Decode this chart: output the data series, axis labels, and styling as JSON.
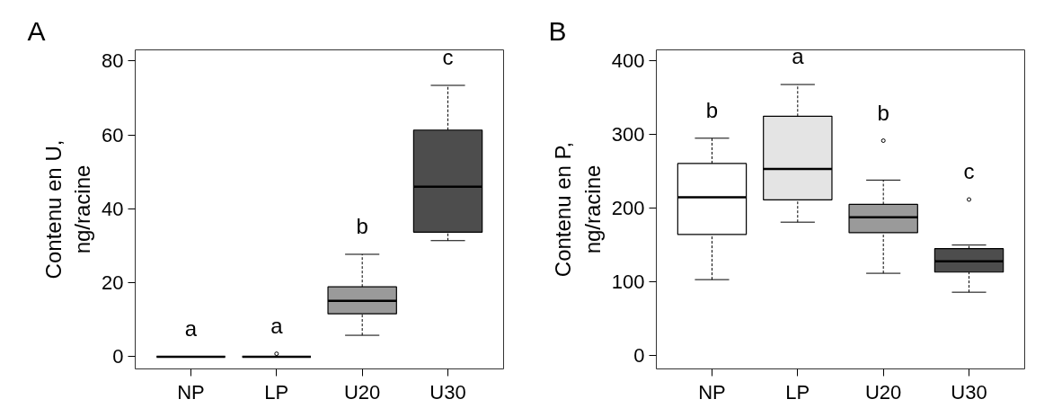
{
  "chart_data": [
    {
      "type": "box",
      "title": "A",
      "ylabel": "Contenu en U,\nng/racine",
      "categories": [
        "NP",
        "LP",
        "U20",
        "U30"
      ],
      "colors": [
        "#000000",
        "#000000",
        "#9a9a9a",
        "#4d4d4d"
      ],
      "boxes": [
        {
          "low": 0,
          "q1": 0,
          "median": 0,
          "q3": 0,
          "high": 0
        },
        {
          "low": 0,
          "q1": 0,
          "median": 0,
          "q3": 0,
          "high": 0,
          "outliers": [
            0.8
          ]
        },
        {
          "low": 5.8,
          "q1": 11.6,
          "median": 15.1,
          "q3": 18.9,
          "high": 27.7
        },
        {
          "low": 31.4,
          "q1": 33.7,
          "median": 46.0,
          "q3": 61.3,
          "high": 73.4
        }
      ],
      "ylim": [
        -3.3,
        83
      ],
      "yticks": [
        0,
        20,
        40,
        60,
        80
      ],
      "annotations": [
        "a",
        "a",
        "b",
        "c"
      ]
    },
    {
      "type": "box",
      "title": "B",
      "ylabel": "Contenu en P,\nng/racine",
      "categories": [
        "NP",
        "LP",
        "U20",
        "U30"
      ],
      "colors": [
        "#ffffff",
        "#e4e4e4",
        "#9a9a9a",
        "#4d4d4d"
      ],
      "boxes": [
        {
          "low": 103.2,
          "q1": 164.5,
          "median": 215.1,
          "q3": 260.8,
          "high": 295.1
        },
        {
          "low": 181.2,
          "q1": 211.5,
          "median": 253.5,
          "q3": 325,
          "high": 368
        },
        {
          "low": 111.8,
          "q1": 166.9,
          "median": 187.7,
          "q3": 205.3,
          "high": 238.3,
          "outliers": [
            291.8
          ]
        },
        {
          "low": 86.1,
          "q1": 113.4,
          "median": 128.1,
          "q3": 145.2,
          "high": 150.1,
          "outliers": [
            211.9
          ]
        }
      ],
      "ylim": [
        -18,
        415
      ],
      "yticks": [
        0,
        100,
        200,
        300,
        400
      ],
      "annotations": [
        "b",
        "a",
        "b",
        "c"
      ]
    }
  ]
}
